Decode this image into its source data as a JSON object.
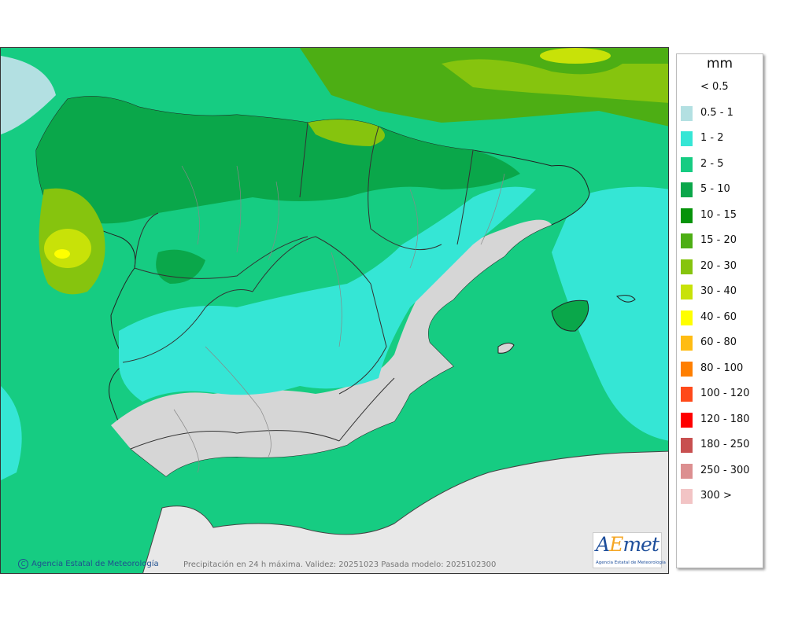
{
  "legend": {
    "title": "mm",
    "items": [
      {
        "label": "< 0.5",
        "color": "#ffffff"
      },
      {
        "label": "0.5 - 1",
        "color": "#b3e0e2"
      },
      {
        "label": "1 - 2",
        "color": "#35e6d5"
      },
      {
        "label": "2 - 5",
        "color": "#16cc82"
      },
      {
        "label": "5 - 10",
        "color": "#0aa74a"
      },
      {
        "label": "10 - 15",
        "color": "#06930a"
      },
      {
        "label": "15 - 20",
        "color": "#4dae14"
      },
      {
        "label": "20 - 30",
        "color": "#86c40e"
      },
      {
        "label": "30 - 40",
        "color": "#c8e208"
      },
      {
        "label": "40 - 60",
        "color": "#ffff00"
      },
      {
        "label": "60 - 80",
        "color": "#ffbc13"
      },
      {
        "label": "80 - 100",
        "color": "#ff7f00"
      },
      {
        "label": "100 - 120",
        "color": "#ff4a1a"
      },
      {
        "label": "120 - 180",
        "color": "#ff0000"
      },
      {
        "label": "180 - 250",
        "color": "#c85050"
      },
      {
        "label": "250 - 300",
        "color": "#dc8f90"
      },
      {
        "label": "300 >",
        "color": "#f2c4c5"
      }
    ]
  },
  "map": {
    "credit": "Agencia Estatal de Meteorología",
    "caption": "Precipitación en 24 h máxima. Validez: 20251023 Pasada modelo: 2025102300"
  },
  "logo": {
    "wordmark_a": "A",
    "wordmark_e": "E",
    "wordmark_rest": "met",
    "subtitle": "Agencia Estatal de Meteorología"
  }
}
